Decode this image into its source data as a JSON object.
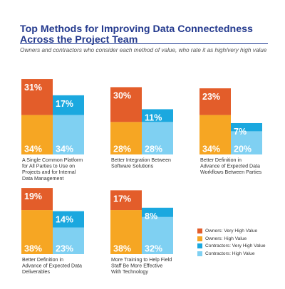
{
  "title": "Top Methods for Improving Data Connectedness Across the Project Team",
  "subtitle": "Owners and contractors who consider each method of value, who rate it as high/very high value",
  "colors": {
    "owners_very_high": "#e35d2a",
    "owners_high": "#f6a623",
    "contractors_very_high": "#1ba8df",
    "contractors_high": "#7fd0f2",
    "divider": "#1f3a93",
    "label_text": "#ffffff",
    "caption_text": "#333333"
  },
  "legend": [
    {
      "label": "Owners: Very High Value",
      "color": "#e35d2a"
    },
    {
      "label": "Owners: High Value",
      "color": "#f6a623"
    },
    {
      "label": "Contractors: Very High Value",
      "color": "#1ba8df"
    },
    {
      "label": "Contractors: High Value",
      "color": "#7fd0f2"
    }
  ],
  "chart_data": {
    "type": "bar",
    "stacked": true,
    "title": "Top Methods for Improving Data Connectedness Across the Project Team",
    "subtitle": "Owners and contractors who consider each method of value, who rate it as high/very high value",
    "legend_position": "bottom-right",
    "grid": false,
    "groups": [
      {
        "label": "A Single Common Platform for All Parties to Use on Projects and for Internal Data Management",
        "owners": {
          "very_high": 31,
          "high": 34
        },
        "contractors": {
          "very_high": 17,
          "high": 34
        }
      },
      {
        "label": "Better Integration Between Software Solutions",
        "owners": {
          "very_high": 30,
          "high": 28
        },
        "contractors": {
          "very_high": 11,
          "high": 28
        }
      },
      {
        "label": "Better Definition in Advance of Expected Data Workflows Between Parties",
        "owners": {
          "very_high": 23,
          "high": 34
        },
        "contractors": {
          "very_high": 7,
          "high": 20
        }
      },
      {
        "label": "Better Definition in Advance of Expected Data Deliverables",
        "owners": {
          "very_high": 19,
          "high": 38
        },
        "contractors": {
          "very_high": 14,
          "high": 23
        }
      },
      {
        "label": "More Training to Help Field Staff Be More Effective With Technology",
        "owners": {
          "very_high": 17,
          "high": 38
        },
        "contractors": {
          "very_high": 8,
          "high": 32
        }
      }
    ]
  }
}
